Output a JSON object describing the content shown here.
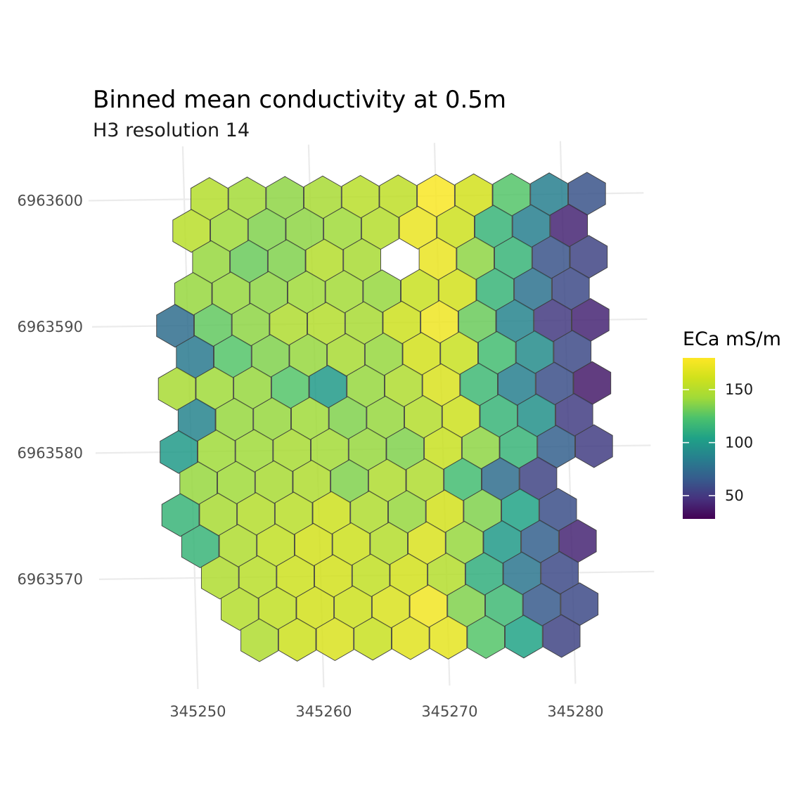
{
  "chart_data": {
    "type": "heatmap",
    "title": "Binned mean conductivity at 0.5m",
    "subtitle": "H3 resolution 14",
    "x_ticks": [
      345250,
      345260,
      345270,
      345280
    ],
    "y_ticks": [
      6963570,
      6963580,
      6963590,
      6963600
    ],
    "legend": {
      "title": "ECa mS/m",
      "breaks": [
        50,
        100,
        150
      ],
      "range": [
        28,
        180
      ],
      "palette": "viridis",
      "placement": "right"
    },
    "grid": true,
    "cells": [
      [
        345252,
        6963600.0,
        150
      ],
      [
        345255,
        6963600.0,
        143
      ],
      [
        345258,
        6963600.0,
        138
      ],
      [
        345261,
        6963600.0,
        145
      ],
      [
        345264,
        6963600.0,
        152
      ],
      [
        345267,
        6963600.0,
        154
      ],
      [
        345270,
        6963600.0,
        178
      ],
      [
        345273,
        6963600.0,
        162
      ],
      [
        345276,
        6963600.0,
        125
      ],
      [
        345279,
        6963600.0,
        85
      ],
      [
        345282,
        6963600.0,
        62
      ],
      [
        345250.5,
        6963597.5,
        152
      ],
      [
        345253.5,
        6963597.5,
        142
      ],
      [
        345256.5,
        6963597.5,
        135
      ],
      [
        345259.5,
        6963597.5,
        138
      ],
      [
        345262.5,
        6963597.5,
        142
      ],
      [
        345265.5,
        6963597.5,
        150
      ],
      [
        345268.5,
        6963597.5,
        172
      ],
      [
        345271.5,
        6963597.5,
        160
      ],
      [
        345274.5,
        6963597.5,
        115
      ],
      [
        345277.5,
        6963597.5,
        85
      ],
      [
        345280.5,
        6963597.5,
        42
      ],
      [
        345252,
        6963595.0,
        140
      ],
      [
        345255,
        6963595.0,
        130
      ],
      [
        345258,
        6963595.0,
        135
      ],
      [
        345261,
        6963595.0,
        150
      ],
      [
        345264,
        6963595.0,
        145
      ],
      [
        345267,
        6963595.0,
        null
      ],
      [
        345270,
        6963595.0,
        172
      ],
      [
        345273,
        6963595.0,
        138
      ],
      [
        345276,
        6963595.0,
        115
      ],
      [
        345279,
        6963595.0,
        62
      ],
      [
        345282,
        6963595.0,
        55
      ],
      [
        345250.5,
        6963592.5,
        140
      ],
      [
        345253.5,
        6963592.5,
        140
      ],
      [
        345256.5,
        6963592.5,
        138
      ],
      [
        345259.5,
        6963592.5,
        142
      ],
      [
        345262.5,
        6963592.5,
        143
      ],
      [
        345265.5,
        6963592.5,
        140
      ],
      [
        345268.5,
        6963592.5,
        158
      ],
      [
        345271.5,
        6963592.5,
        162
      ],
      [
        345274.5,
        6963592.5,
        115
      ],
      [
        345277.5,
        6963592.5,
        78
      ],
      [
        345280.5,
        6963592.5,
        58
      ],
      [
        345249,
        6963590.0,
        75
      ],
      [
        345252,
        6963590.0,
        128
      ],
      [
        345255,
        6963590.0,
        138
      ],
      [
        345258,
        6963590.0,
        148
      ],
      [
        345261,
        6963590.0,
        150
      ],
      [
        345264,
        6963590.0,
        145
      ],
      [
        345267,
        6963590.0,
        160
      ],
      [
        345270,
        6963590.0,
        174
      ],
      [
        345273,
        6963590.0,
        130
      ],
      [
        345276,
        6963590.0,
        88
      ],
      [
        345279,
        6963590.0,
        50
      ],
      [
        345282,
        6963590.0,
        42
      ],
      [
        345250.5,
        6963587.5,
        82
      ],
      [
        345253.5,
        6963587.5,
        125
      ],
      [
        345256.5,
        6963587.5,
        135
      ],
      [
        345259.5,
        6963587.5,
        140
      ],
      [
        345262.5,
        6963587.5,
        145
      ],
      [
        345265.5,
        6963587.5,
        140
      ],
      [
        345268.5,
        6963587.5,
        162
      ],
      [
        345271.5,
        6963587.5,
        158
      ],
      [
        345274.5,
        6963587.5,
        120
      ],
      [
        345277.5,
        6963587.5,
        92
      ],
      [
        345280.5,
        6963587.5,
        58
      ],
      [
        345249,
        6963585.0,
        145
      ],
      [
        345252,
        6963585.0,
        142
      ],
      [
        345255,
        6963585.0,
        140
      ],
      [
        345258,
        6963585.0,
        125
      ],
      [
        345261,
        6963585.0,
        100
      ],
      [
        345264,
        6963585.0,
        140
      ],
      [
        345267,
        6963585.0,
        148
      ],
      [
        345270,
        6963585.0,
        165
      ],
      [
        345273,
        6963585.0,
        118
      ],
      [
        345276,
        6963585.0,
        85
      ],
      [
        345279,
        6963585.0,
        60
      ],
      [
        345282,
        6963585.0,
        38
      ],
      [
        345250.5,
        6963582.5,
        88
      ],
      [
        345253.5,
        6963582.5,
        140
      ],
      [
        345256.5,
        6963582.5,
        140
      ],
      [
        345259.5,
        6963582.5,
        142
      ],
      [
        345262.5,
        6963582.5,
        135
      ],
      [
        345265.5,
        6963582.5,
        140
      ],
      [
        345268.5,
        6963582.5,
        150
      ],
      [
        345271.5,
        6963582.5,
        160
      ],
      [
        345274.5,
        6963582.5,
        115
      ],
      [
        345277.5,
        6963582.5,
        95
      ],
      [
        345280.5,
        6963582.5,
        52
      ],
      [
        345249,
        6963580.0,
        100
      ],
      [
        345252,
        6963580.0,
        142
      ],
      [
        345255,
        6963580.0,
        142
      ],
      [
        345258,
        6963580.0,
        145
      ],
      [
        345261,
        6963580.0,
        143
      ],
      [
        345264,
        6963580.0,
        140
      ],
      [
        345267,
        6963580.0,
        135
      ],
      [
        345270,
        6963580.0,
        158
      ],
      [
        345273,
        6963580.0,
        138
      ],
      [
        345276,
        6963580.0,
        115
      ],
      [
        345279,
        6963580.0,
        68
      ],
      [
        345282,
        6963580.0,
        52
      ],
      [
        345250.5,
        6963577.5,
        140
      ],
      [
        345253.5,
        6963577.5,
        142
      ],
      [
        345256.5,
        6963577.5,
        145
      ],
      [
        345259.5,
        6963577.5,
        148
      ],
      [
        345262.5,
        6963577.5,
        135
      ],
      [
        345265.5,
        6963577.5,
        148
      ],
      [
        345268.5,
        6963577.5,
        148
      ],
      [
        345271.5,
        6963577.5,
        120
      ],
      [
        345274.5,
        6963577.5,
        75
      ],
      [
        345277.5,
        6963577.5,
        55
      ],
      [
        345249,
        6963575.0,
        115
      ],
      [
        345252,
        6963575.0,
        145
      ],
      [
        345255,
        6963575.0,
        150
      ],
      [
        345258,
        6963575.0,
        152
      ],
      [
        345261,
        6963575.0,
        160
      ],
      [
        345264,
        6963575.0,
        148
      ],
      [
        345267,
        6963575.0,
        140
      ],
      [
        345270,
        6963575.0,
        162
      ],
      [
        345273,
        6963575.0,
        135
      ],
      [
        345276,
        6963575.0,
        105
      ],
      [
        345279,
        6963575.0,
        60
      ],
      [
        345250.5,
        6963572.5,
        115
      ],
      [
        345253.5,
        6963572.5,
        148
      ],
      [
        345256.5,
        6963572.5,
        155
      ],
      [
        345259.5,
        6963572.5,
        162
      ],
      [
        345262.5,
        6963572.5,
        160
      ],
      [
        345265.5,
        6963572.5,
        150
      ],
      [
        345268.5,
        6963572.5,
        165
      ],
      [
        345271.5,
        6963572.5,
        140
      ],
      [
        345274.5,
        6963572.5,
        100
      ],
      [
        345277.5,
        6963572.5,
        68
      ],
      [
        345280.5,
        6963572.5,
        42
      ],
      [
        345252,
        6963570.0,
        148
      ],
      [
        345255,
        6963570.0,
        152
      ],
      [
        345258,
        6963570.0,
        160
      ],
      [
        345261,
        6963570.0,
        162
      ],
      [
        345264,
        6963570.0,
        155
      ],
      [
        345267,
        6963570.0,
        162
      ],
      [
        345270,
        6963570.0,
        150
      ],
      [
        345273,
        6963570.0,
        112
      ],
      [
        345276,
        6963570.0,
        80
      ],
      [
        345279,
        6963570.0,
        58
      ],
      [
        345253.5,
        6963567.5,
        150
      ],
      [
        345256.5,
        6963567.5,
        155
      ],
      [
        345259.5,
        6963567.5,
        162
      ],
      [
        345262.5,
        6963567.5,
        160
      ],
      [
        345265.5,
        6963567.5,
        165
      ],
      [
        345268.5,
        6963567.5,
        175
      ],
      [
        345271.5,
        6963567.5,
        135
      ],
      [
        345274.5,
        6963567.5,
        118
      ],
      [
        345277.5,
        6963567.5,
        65
      ],
      [
        345280.5,
        6963567.5,
        58
      ],
      [
        345255,
        6963565.0,
        148
      ],
      [
        345258,
        6963565.0,
        160
      ],
      [
        345261,
        6963565.0,
        165
      ],
      [
        345264,
        6963565.0,
        158
      ],
      [
        345267,
        6963565.0,
        168
      ],
      [
        345270,
        6963565.0,
        170
      ],
      [
        345273,
        6963565.0,
        125
      ],
      [
        345276,
        6963565.0,
        105
      ],
      [
        345279,
        6963565.0,
        55
      ]
    ]
  }
}
